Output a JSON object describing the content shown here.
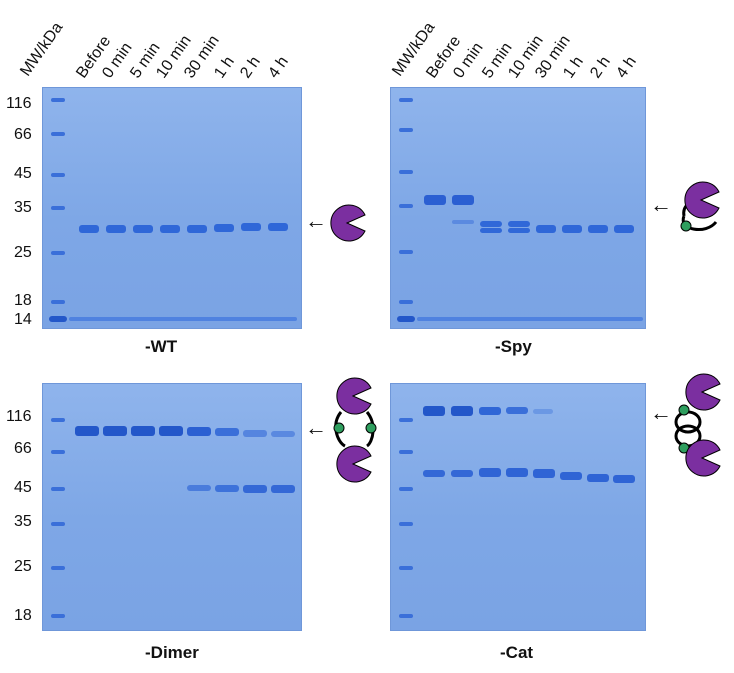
{
  "colors": {
    "gel": "#86aeea",
    "band": "#2b63d6",
    "pac": "#7b2fa0",
    "dot": "#2e9e5e"
  },
  "lanes": [
    "Before",
    "0 min",
    "5 min",
    "10 min",
    "30 min",
    "1 h",
    "2 h",
    "4 h"
  ],
  "panels": [
    {
      "caption": "-WT",
      "header": "MW/kDa",
      "markers": [
        "116",
        "66",
        "45",
        "35",
        "25",
        "18",
        "14"
      ]
    },
    {
      "caption": "-Spy",
      "header": "MW/kDa",
      "markers": []
    },
    {
      "caption": "-Dimer",
      "header": "",
      "markers": [
        "116",
        "66",
        "45",
        "35",
        "25",
        "18"
      ]
    },
    {
      "caption": "-Cat",
      "header": "",
      "markers": []
    }
  ],
  "arrows": [
    "←",
    "←",
    "←",
    "←"
  ]
}
